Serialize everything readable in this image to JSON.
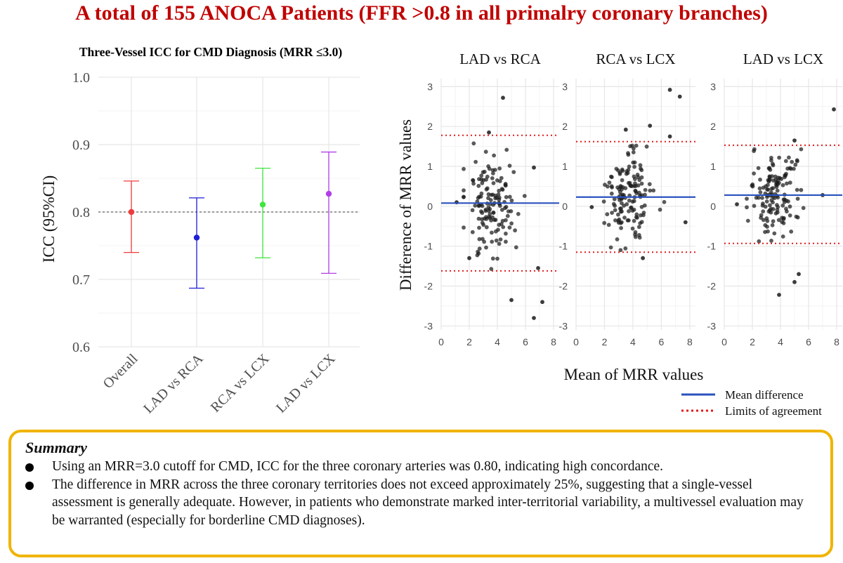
{
  "title": "A total of 155 ANOCA Patients (FFR >0.8 in all primalry coronary branches)",
  "chart_data": [
    {
      "type": "errorbar",
      "title": "Three-Vessel ICC for CMD Diagnosis (MRR ≤3.0)",
      "xlabel": "",
      "ylabel": "ICC (95%CI)",
      "ylim": [
        0.6,
        1.0
      ],
      "yticks": [
        0.6,
        0.7,
        0.8,
        0.9,
        1.0
      ],
      "reference_line": 0.8,
      "categories": [
        "Overall",
        "LAD vs RCA",
        "RCA vs LCX",
        "LAD vs LCX"
      ],
      "estimates": [
        0.8,
        0.762,
        0.811,
        0.827
      ],
      "lower": [
        0.74,
        0.687,
        0.732,
        0.709
      ],
      "upper": [
        0.846,
        0.821,
        0.865,
        0.889
      ],
      "colors": [
        "#ef3b3b",
        "#1f1fd6",
        "#3ee63e",
        "#b23ee8"
      ]
    },
    {
      "type": "scatter",
      "subtype": "bland-altman",
      "xlabel": "Mean of MRR values",
      "ylabel": "Difference of MRR values",
      "xlim": [
        0,
        8.4
      ],
      "ylim": [
        -3.1,
        3.2
      ],
      "xticks": [
        0,
        2,
        4,
        6,
        8
      ],
      "yticks": [
        -3,
        -2,
        -1,
        0,
        1,
        2,
        3
      ],
      "legend": [
        {
          "label": "Mean difference",
          "color": "#2a52be",
          "style": "solid"
        },
        {
          "label": "Limits of agreement",
          "color": "#e31a1c",
          "style": "dotted"
        }
      ],
      "panels": [
        {
          "title": "LAD vs RCA",
          "mean_diff": 0.08,
          "loa_upper": 1.78,
          "loa_lower": -1.62,
          "outliers": [
            [
              4.4,
              2.72
            ],
            [
              3.4,
              1.85
            ],
            [
              5.0,
              -2.35
            ],
            [
              7.2,
              -2.4
            ],
            [
              6.6,
              -2.8
            ],
            [
              6.9,
              -1.55
            ],
            [
              6.6,
              0.97
            ],
            [
              1.1,
              0.1
            ],
            [
              2.0,
              -1.3
            ]
          ]
        },
        {
          "title": "RCA vs LCX",
          "mean_diff": 0.23,
          "loa_upper": 1.62,
          "loa_lower": -1.15,
          "outliers": [
            [
              6.6,
              2.92
            ],
            [
              7.3,
              2.75
            ],
            [
              5.2,
              2.02
            ],
            [
              3.5,
              1.92
            ],
            [
              1.1,
              -0.02
            ],
            [
              4.7,
              -1.3
            ],
            [
              7.7,
              -0.4
            ],
            [
              6.6,
              1.75
            ]
          ]
        },
        {
          "title": "LAD vs LCX",
          "mean_diff": 0.28,
          "loa_upper": 1.53,
          "loa_lower": -0.93,
          "outliers": [
            [
              7.8,
              2.43
            ],
            [
              5.3,
              -1.7
            ],
            [
              5.0,
              -1.9
            ],
            [
              3.9,
              -2.22
            ],
            [
              0.9,
              0.05
            ],
            [
              5.0,
              1.65
            ],
            [
              7.0,
              0.28
            ]
          ]
        }
      ]
    }
  ],
  "summary": {
    "title": "Summary",
    "bullets": [
      "Using an MRR=3.0 cutoff for CMD, ICC for the three coronary arteries was 0.80, indicating high concordance.",
      "The difference in MRR across the three coronary territories does not exceed approximately 25%, suggesting that a single-vessel assessment is generally adequate. However, in patients who demonstrate marked inter-territorial variability, a multivessel evaluation may be warranted (especially for borderline CMD diagnoses)."
    ]
  }
}
